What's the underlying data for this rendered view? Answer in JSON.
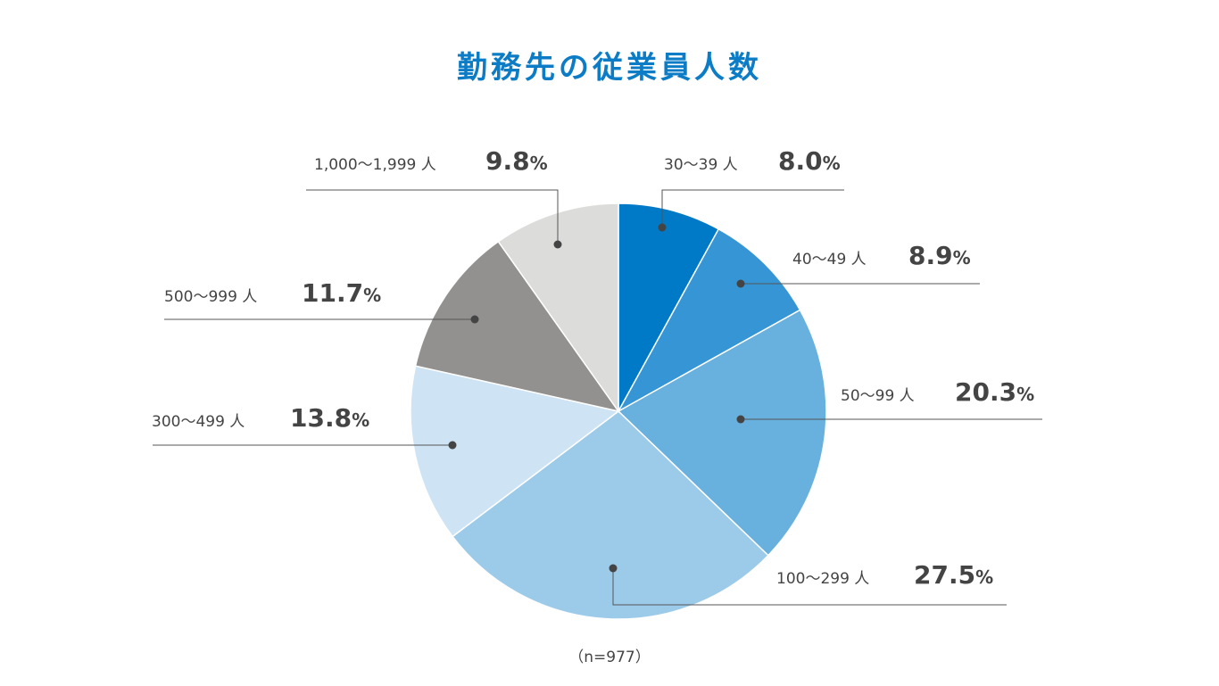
{
  "chart_data": {
    "type": "pie",
    "title": "勤務先の従業員人数",
    "note": "（n=977）",
    "slices": [
      {
        "label": "30～39 人",
        "value": 8.0,
        "display": "8.0",
        "color": "#0079c6"
      },
      {
        "label": "40～49 人",
        "value": 8.9,
        "display": "8.9",
        "color": "#3696d5"
      },
      {
        "label": "50～99 人",
        "value": 20.3,
        "display": "20.3",
        "color": "#68b0de"
      },
      {
        "label": "100～299 人",
        "value": 27.5,
        "display": "27.5",
        "color": "#9ccbea"
      },
      {
        "label": "300～499 人",
        "value": 13.8,
        "display": "13.8",
        "color": "#cee4f4"
      },
      {
        "label": "500～999 人",
        "value": 11.7,
        "display": "11.7",
        "color": "#929190"
      },
      {
        "label": "1,000～1,999 人",
        "value": 9.8,
        "display": "9.8",
        "color": "#dcdcdb"
      }
    ],
    "percent_sign": "%"
  }
}
